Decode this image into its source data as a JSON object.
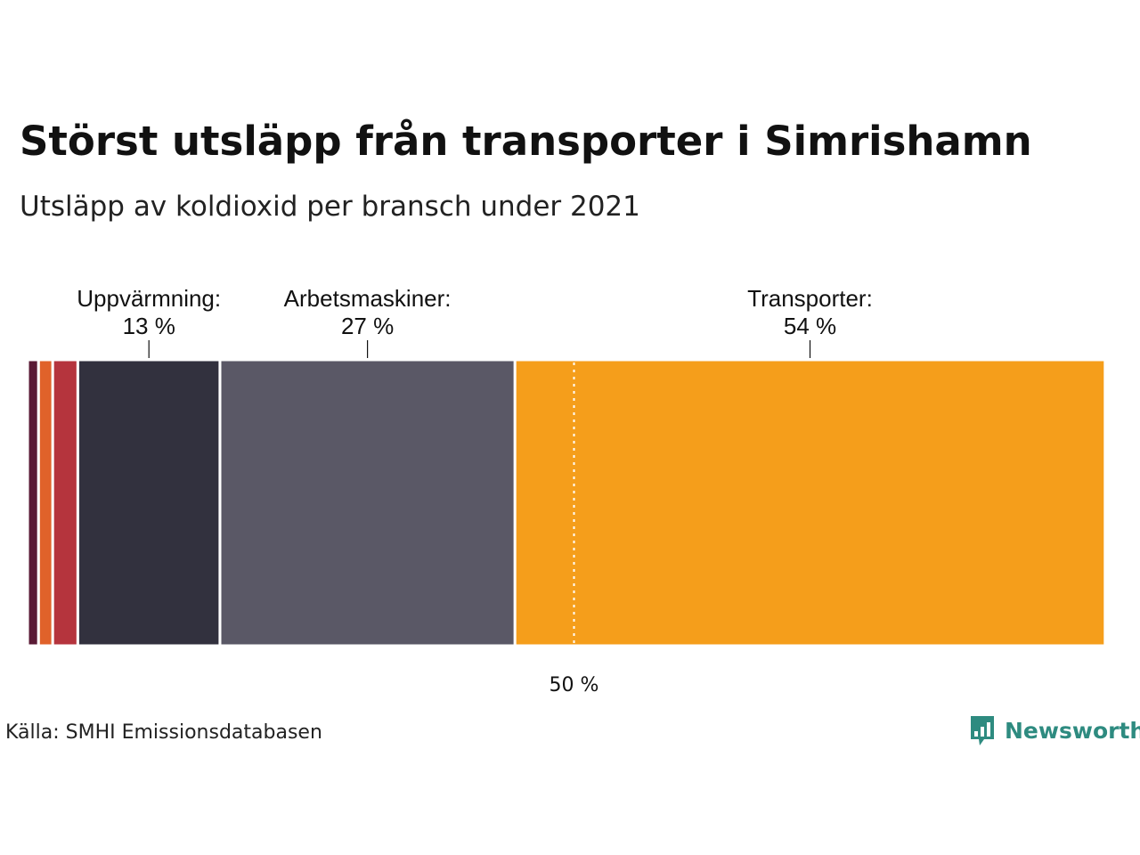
{
  "title": "Störst utsläpp från transporter i Simrishamn",
  "subtitle": "Utsläpp av koldioxid per bransch under 2021",
  "source": "Källa: SMHI Emissionsdatabasen",
  "brand": {
    "name": "Newsworthy",
    "icon": "newsworthy-logo-icon",
    "color": "#2e8b80"
  },
  "chart_data": {
    "type": "stacked-bar",
    "orientation": "horizontal",
    "unit": "%",
    "xlim": [
      0,
      100
    ],
    "segments": [
      {
        "name": "",
        "value": 1,
        "color": "#5a1a35"
      },
      {
        "name": "",
        "value": 1.3,
        "color": "#e0622a"
      },
      {
        "name": "",
        "value": 2.3,
        "color": "#b5343d"
      },
      {
        "name": "Uppvärmning:",
        "value": 13,
        "value_label": "13 %",
        "color": "#32313e"
      },
      {
        "name": "Arbetsmaskiner:",
        "value": 27,
        "value_label": "27 %",
        "color": "#5a5866"
      },
      {
        "name": "Transporter:",
        "value": 54,
        "value_label": "54 %",
        "color": "#f59e1b"
      }
    ],
    "reference_line": {
      "value": 50,
      "label": "50 %"
    }
  }
}
